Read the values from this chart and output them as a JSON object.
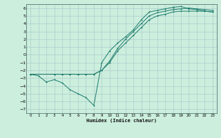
{
  "xlabel": "Humidex (Indice chaleur)",
  "bg_color": "#cceedd",
  "grid_color": "#aacccc",
  "line_color": "#1a7a6a",
  "xlim": [
    -0.5,
    23.5
  ],
  "ylim": [
    -7.5,
    6.5
  ],
  "xticks": [
    0,
    1,
    2,
    3,
    4,
    5,
    6,
    7,
    8,
    9,
    10,
    11,
    12,
    13,
    14,
    15,
    16,
    17,
    18,
    19,
    20,
    21,
    22,
    23
  ],
  "yticks": [
    -7,
    -6,
    -5,
    -4,
    -3,
    -2,
    -1,
    0,
    1,
    2,
    3,
    4,
    5,
    6
  ],
  "line1_x": [
    0,
    1,
    2,
    3,
    4,
    5,
    6,
    7,
    8,
    9,
    10,
    11,
    12,
    13,
    14,
    15,
    16,
    17,
    18,
    19,
    20,
    21,
    22,
    23
  ],
  "line1_y": [
    -2.5,
    -2.7,
    -3.5,
    -3.2,
    -3.6,
    -4.5,
    -5.0,
    -5.5,
    -6.5,
    -1.0,
    0.5,
    1.5,
    2.3,
    3.2,
    4.5,
    5.5,
    5.7,
    5.9,
    6.1,
    6.2,
    5.9,
    5.8,
    5.6,
    5.5
  ],
  "line2_x": [
    0,
    3,
    4,
    5,
    6,
    7,
    8,
    9,
    10,
    11,
    12,
    13,
    14,
    15,
    16,
    17,
    18,
    19,
    20,
    21,
    22,
    23
  ],
  "line2_y": [
    -2.5,
    -2.5,
    -2.5,
    -2.5,
    -2.5,
    -2.5,
    -2.5,
    -2.0,
    -1.0,
    0.5,
    1.5,
    2.5,
    3.5,
    4.5,
    5.0,
    5.2,
    5.5,
    5.6,
    5.6,
    5.6,
    5.6,
    5.5
  ],
  "line3_x": [
    0,
    3,
    4,
    5,
    6,
    7,
    8,
    9,
    10,
    11,
    12,
    13,
    14,
    15,
    16,
    17,
    18,
    19,
    20,
    21,
    22,
    23
  ],
  "line3_y": [
    -2.5,
    -2.5,
    -2.5,
    -2.5,
    -2.5,
    -2.5,
    -2.5,
    -2.0,
    -0.8,
    0.8,
    2.0,
    3.0,
    4.0,
    5.0,
    5.4,
    5.6,
    5.8,
    5.9,
    6.0,
    5.9,
    5.8,
    5.7
  ]
}
